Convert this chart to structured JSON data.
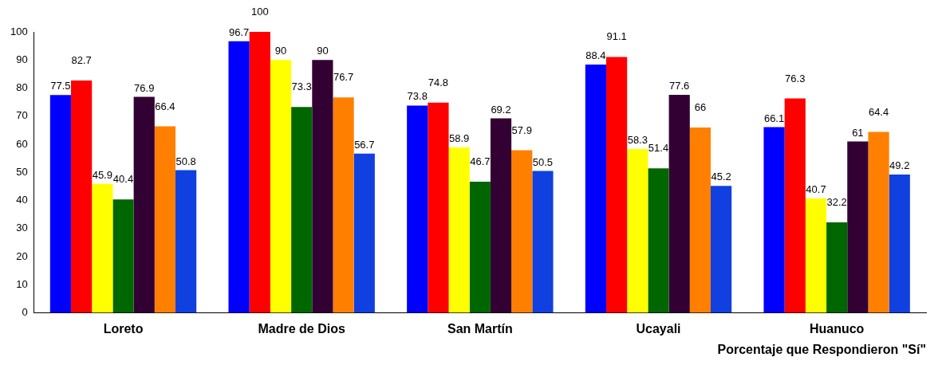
{
  "chart_data": {
    "type": "bar",
    "xlabel": "Porcentaje que Respondieron \"Sí\"",
    "categories": [
      "Loreto",
      "Madre de Dios",
      "San Martín",
      "Ucayali",
      "Huanuco"
    ],
    "series": [
      {
        "color": "#0000ff",
        "values": [
          77.5,
          96.7,
          73.8,
          88.4,
          66.1
        ]
      },
      {
        "color": "#ff0000",
        "values": [
          82.7,
          100,
          74.8,
          91.1,
          76.3
        ]
      },
      {
        "color": "#ffff00",
        "values": [
          45.9,
          90,
          58.9,
          58.3,
          40.7
        ]
      },
      {
        "color": "#006600",
        "values": [
          40.4,
          73.3,
          46.7,
          51.4,
          32.2
        ]
      },
      {
        "color": "#330033",
        "values": [
          76.9,
          90,
          69.2,
          77.6,
          61
        ]
      },
      {
        "color": "#ff8000",
        "values": [
          66.4,
          76.7,
          57.9,
          66,
          64.4
        ]
      },
      {
        "color": "#1040e0",
        "values": [
          50.8,
          56.7,
          50.5,
          45.2,
          49.2
        ]
      }
    ],
    "ylim": [
      0,
      100
    ],
    "yticks": [
      0,
      10,
      20,
      30,
      40,
      50,
      60,
      70,
      80,
      90,
      100
    ],
    "grid": false,
    "legend": false,
    "data_labels": true
  }
}
